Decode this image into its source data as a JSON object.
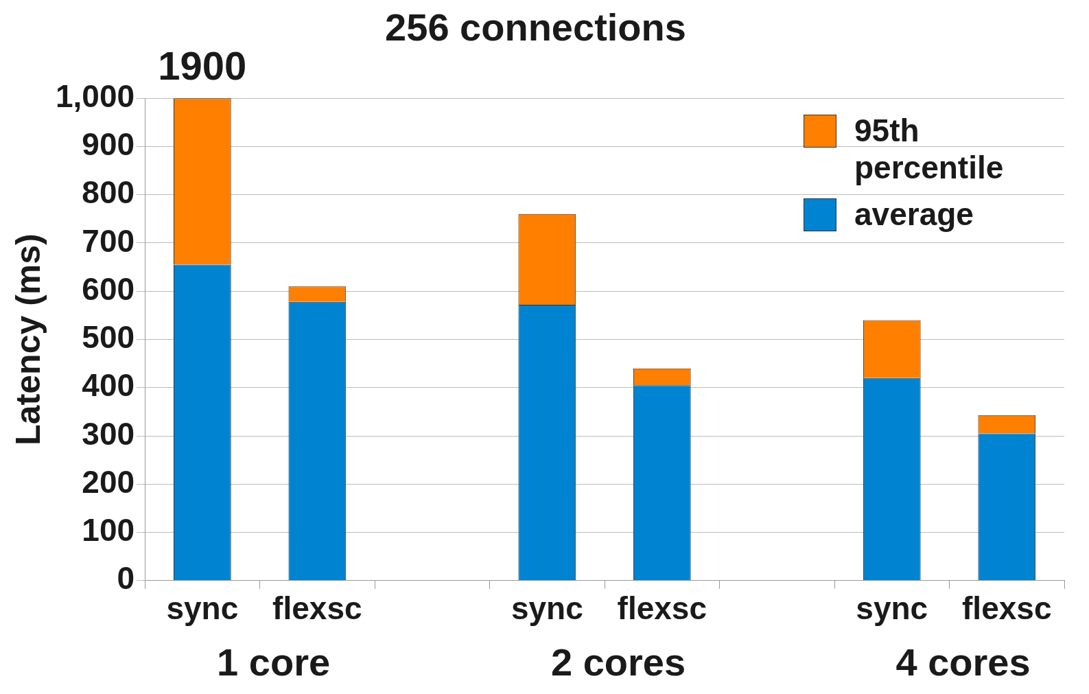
{
  "chart_data": {
    "type": "bar",
    "title": "256 connections",
    "ylabel": "Latency (ms)",
    "categories": [
      "sync",
      "flexsc",
      null,
      "sync",
      "flexsc",
      null,
      "sync",
      "flexsc"
    ],
    "stacked": true,
    "series": [
      {
        "name": "average",
        "color": "#0084d1",
        "values": [
          655,
          578,
          null,
          572,
          405,
          null,
          420,
          305
        ]
      },
      {
        "name": "95th percentile",
        "color": "#ff7f00",
        "values": [
          345,
          32,
          null,
          188,
          35,
          null,
          120,
          38
        ]
      }
    ],
    "ylim": [
      0,
      1000
    ],
    "yticks": [
      0,
      100,
      200,
      300,
      400,
      500,
      600,
      700,
      800,
      900,
      {
        "value": 1000,
        "label": "1,000"
      }
    ],
    "grid": "y",
    "legend": "top right",
    "annotations": [
      {
        "text": "1900",
        "x": "sync",
        "y": 1000
      },
      "1 core",
      "2 cores",
      "4 cores"
    ]
  }
}
